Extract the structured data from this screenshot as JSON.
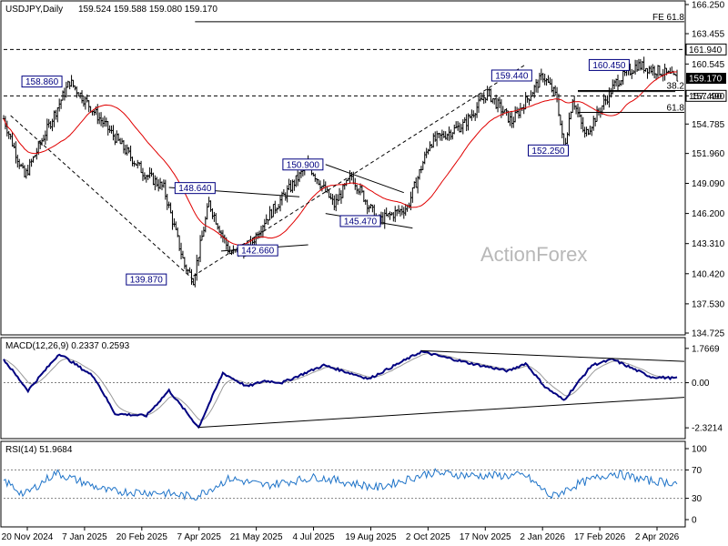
{
  "chart_data": [
    {
      "type": "candlestick",
      "title": "USDJPY,Daily",
      "ohlc_header": "159.524 159.588 159.080 159.170",
      "watermark": "ActionForex",
      "x_labels": [
        "20 Nov 2024",
        "7 Jan 2025",
        "20 Feb 2025",
        "7 Apr 2025",
        "21 May 2025",
        "4 Jul 2025",
        "19 Aug 2025",
        "2 Oct 2025",
        "17 Nov 2025",
        "2 Jan 2026",
        "17 Feb 2026",
        "2 Apr 2026"
      ],
      "y_ticks": [
        "166.250",
        "163.455",
        "160.545",
        "157.490",
        "154.785",
        "151.960",
        "149.090",
        "146.200",
        "143.310",
        "140.420",
        "137.530",
        "134.725"
      ],
      "y_tick_values": [
        166.25,
        163.455,
        160.545,
        157.49,
        154.785,
        151.96,
        149.09,
        146.2,
        143.31,
        140.42,
        137.53,
        134.725
      ],
      "ylim": [
        134.725,
        166.25
      ],
      "price_path_key_points": [
        {
          "bar": 0,
          "price": 155.3
        },
        {
          "bar": 12,
          "price": 149.7
        },
        {
          "bar": 38,
          "price": 158.86
        },
        {
          "bar": 80,
          "price": 150.2
        },
        {
          "bar": 92,
          "price": 148.64
        },
        {
          "bar": 104,
          "price": 141.2
        },
        {
          "bar": 109,
          "price": 139.87
        },
        {
          "bar": 118,
          "price": 147.2
        },
        {
          "bar": 130,
          "price": 142.4
        },
        {
          "bar": 140,
          "price": 142.66
        },
        {
          "bar": 150,
          "price": 145.5
        },
        {
          "bar": 175,
          "price": 150.9
        },
        {
          "bar": 190,
          "price": 147.0
        },
        {
          "bar": 200,
          "price": 149.8
        },
        {
          "bar": 215,
          "price": 145.47
        },
        {
          "bar": 232,
          "price": 146.8
        },
        {
          "bar": 245,
          "price": 153.0
        },
        {
          "bar": 265,
          "price": 154.8
        },
        {
          "bar": 278,
          "price": 157.8
        },
        {
          "bar": 292,
          "price": 155.0
        },
        {
          "bar": 310,
          "price": 159.44
        },
        {
          "bar": 318,
          "price": 157.3
        },
        {
          "bar": 322,
          "price": 152.25
        },
        {
          "bar": 327,
          "price": 157.3
        },
        {
          "bar": 334,
          "price": 153.7
        },
        {
          "bar": 352,
          "price": 158.8
        },
        {
          "bar": 364,
          "price": 160.45
        },
        {
          "bar": 378,
          "price": 159.8
        },
        {
          "bar": 386,
          "price": 159.17
        }
      ],
      "level_tags": [
        {
          "text": "158.860",
          "bar": 22,
          "price": 158.86
        },
        {
          "text": "148.640",
          "bar": 110,
          "price": 148.64
        },
        {
          "text": "139.870",
          "bar": 82,
          "price": 139.87
        },
        {
          "text": "142.660",
          "bar": 146,
          "price": 142.66
        },
        {
          "text": "150.900",
          "bar": 172,
          "price": 150.9
        },
        {
          "text": "145.470",
          "bar": 205,
          "price": 145.47
        },
        {
          "text": "159.440",
          "bar": 292,
          "price": 159.44
        },
        {
          "text": "152.250",
          "bar": 313,
          "price": 152.25
        },
        {
          "text": "160.450",
          "bar": 348,
          "price": 160.45
        }
      ],
      "horizontal_levels": [
        {
          "price": 161.94,
          "label": "161.940",
          "style": "dashed"
        },
        {
          "price": 157.49,
          "label": "157.490",
          "style": "dashed"
        },
        {
          "price": 164.6,
          "label": "FE 61.8",
          "style": "solid"
        },
        {
          "price": 155.9,
          "label": "61.8",
          "style": "solid"
        },
        {
          "price": 158.0,
          "label": "38.2",
          "style": "solid"
        }
      ],
      "current_price": {
        "label": "159.170",
        "price": 159.17
      },
      "moving_average_color": "#e00000",
      "candle_color": "#000000"
    },
    {
      "type": "line",
      "title": "MACD(12,26,9) 0.2337 0.2593",
      "y_ticks": [
        "1.7669",
        "0.00",
        "-2.3214"
      ],
      "y_tick_values": [
        1.7669,
        0.0,
        -2.3214
      ],
      "ylim": [
        -2.55,
        1.9
      ],
      "key_points": [
        {
          "bar": 0,
          "value": 1.2
        },
        {
          "bar": 14,
          "value": -0.4
        },
        {
          "bar": 32,
          "value": 1.5
        },
        {
          "bar": 52,
          "value": 0.3
        },
        {
          "bar": 64,
          "value": -1.6
        },
        {
          "bar": 82,
          "value": -1.7
        },
        {
          "bar": 95,
          "value": -0.4
        },
        {
          "bar": 112,
          "value": -2.3
        },
        {
          "bar": 126,
          "value": 0.5
        },
        {
          "bar": 140,
          "value": -0.2
        },
        {
          "bar": 150,
          "value": 0.1
        },
        {
          "bar": 160,
          "value": 0.0
        },
        {
          "bar": 184,
          "value": 0.9
        },
        {
          "bar": 210,
          "value": 0.2
        },
        {
          "bar": 240,
          "value": 1.6
        },
        {
          "bar": 268,
          "value": 1.0
        },
        {
          "bar": 290,
          "value": 0.6
        },
        {
          "bar": 300,
          "value": 1.0
        },
        {
          "bar": 311,
          "value": -0.2
        },
        {
          "bar": 322,
          "value": -0.9
        },
        {
          "bar": 338,
          "value": 0.9
        },
        {
          "bar": 350,
          "value": 1.2
        },
        {
          "bar": 372,
          "value": 0.3
        },
        {
          "bar": 386,
          "value": 0.23
        }
      ],
      "line_color": "#000080"
    },
    {
      "type": "line",
      "title": "RSI(14) 51.9684",
      "y_ticks": [
        "100",
        "70",
        "30",
        "0"
      ],
      "y_tick_values": [
        100,
        70,
        30,
        0
      ],
      "ylim": [
        0,
        100
      ],
      "key_points": [
        {
          "bar": 0,
          "value": 55
        },
        {
          "bar": 12,
          "value": 35
        },
        {
          "bar": 30,
          "value": 66
        },
        {
          "bar": 60,
          "value": 40
        },
        {
          "bar": 90,
          "value": 38
        },
        {
          "bar": 110,
          "value": 32
        },
        {
          "bar": 130,
          "value": 58
        },
        {
          "bar": 150,
          "value": 48
        },
        {
          "bar": 180,
          "value": 60
        },
        {
          "bar": 215,
          "value": 45
        },
        {
          "bar": 245,
          "value": 66
        },
        {
          "bar": 270,
          "value": 62
        },
        {
          "bar": 300,
          "value": 62
        },
        {
          "bar": 315,
          "value": 32
        },
        {
          "bar": 330,
          "value": 50
        },
        {
          "bar": 350,
          "value": 66
        },
        {
          "bar": 370,
          "value": 55
        },
        {
          "bar": 386,
          "value": 52
        }
      ],
      "line_color": "#1e73c8"
    }
  ]
}
